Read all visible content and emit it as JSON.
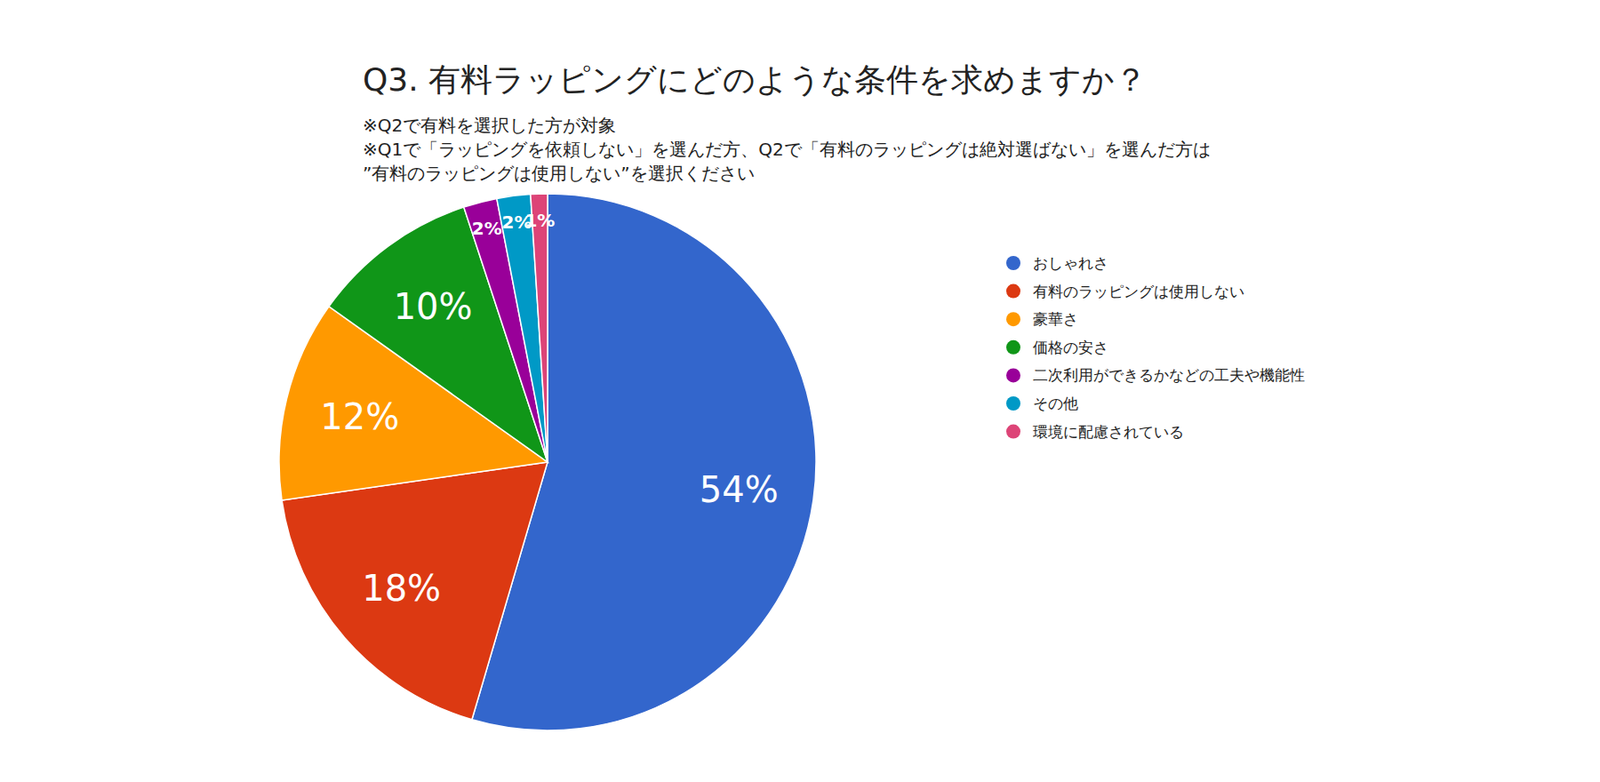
{
  "chart_data": {
    "type": "pie",
    "title": "Q3. 有料ラッピングにどのような条件を求めますか？",
    "subtitle": [
      "※Q2で有料を選択した方が対象",
      "※Q1で「ラッピングを依頼しない」を選んだ方、Q2で「有料のラッピングは絶対選ばない」を選んだ方は",
      "”有料のラッピングは使用しない”を選択ください"
    ],
    "categories": [
      "おしゃれさ",
      "有料のラッピングは使用しない",
      "豪華さ",
      "価格の安さ",
      "二次利用ができるかなどの工夫や機能性",
      "その他",
      "環境に配慮されている"
    ],
    "values": [
      54,
      18,
      12,
      10,
      2,
      2,
      1
    ],
    "value_labels": [
      "54%",
      "18%",
      "12%",
      "10%",
      "2%",
      "2%",
      "1%"
    ],
    "colors": [
      "#3366cc",
      "#dc3912",
      "#ff9900",
      "#109618",
      "#990099",
      "#0099c6",
      "#dd4477"
    ],
    "data_labels": true,
    "legend": "right"
  }
}
